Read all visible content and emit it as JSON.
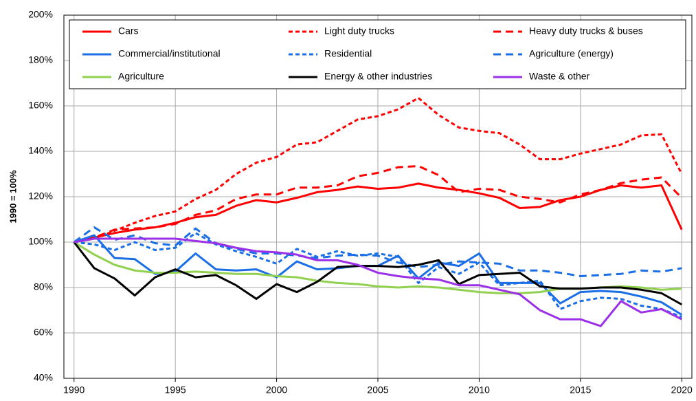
{
  "chart_data": {
    "type": "line",
    "y_label": "1990 = 100%",
    "x": [
      1990,
      1991,
      1992,
      1993,
      1994,
      1995,
      1996,
      1997,
      1998,
      1999,
      2000,
      2001,
      2002,
      2003,
      2004,
      2005,
      2006,
      2007,
      2008,
      2009,
      2010,
      2011,
      2012,
      2013,
      2014,
      2015,
      2016,
      2017,
      2018,
      2019,
      2020
    ],
    "xlim": [
      1989.5,
      2020.5
    ],
    "xticks": [
      1990,
      1995,
      2000,
      2005,
      2010,
      2015,
      2020
    ],
    "ylim": [
      40,
      200
    ],
    "yticks": [
      {
        "value": 40,
        "label": "40%"
      },
      {
        "value": 60,
        "label": "60%"
      },
      {
        "value": 80,
        "label": "80%"
      },
      {
        "value": 100,
        "label": "100%"
      },
      {
        "value": 120,
        "label": "120%"
      },
      {
        "value": 140,
        "label": "140%"
      },
      {
        "value": 160,
        "label": "160%"
      },
      {
        "value": 180,
        "label": "180%"
      },
      {
        "value": 200,
        "label": "200%"
      }
    ],
    "grid": true,
    "legend": "top",
    "series": [
      {
        "name": "Cars",
        "color": "#ff0000",
        "dash": "solid",
        "values": [
          100,
          102,
          104,
          105.5,
          106.5,
          108.5,
          111,
          112,
          116,
          118.5,
          117.5,
          119.5,
          122,
          123,
          124.5,
          123.5,
          124,
          125.8,
          124,
          123,
          121.5,
          119.5,
          115,
          115.5,
          118.5,
          120,
          123,
          125,
          124,
          125,
          105.5
        ]
      },
      {
        "name": "Light duty trucks",
        "color": "#ff0000",
        "dash": "dotted",
        "values": [
          100,
          101.5,
          105,
          108.5,
          111.5,
          113.5,
          119,
          123,
          130,
          135,
          137.5,
          143,
          144,
          149,
          154,
          155.5,
          158.5,
          163.5,
          156,
          150.5,
          149,
          148,
          143,
          136.5,
          136.5,
          139,
          141,
          143,
          147,
          147.5,
          130
        ]
      },
      {
        "name": "Heavy duty trucks & buses",
        "color": "#ff0000",
        "dash": "dashed",
        "values": [
          100,
          102,
          105.5,
          106,
          106.5,
          108,
          112,
          114,
          119,
          121,
          121,
          124,
          124,
          125,
          129,
          130.5,
          133,
          133.5,
          129.5,
          122,
          123.5,
          123,
          120,
          119,
          117.5,
          121,
          123,
          126,
          127.5,
          128.5,
          119.5
        ]
      },
      {
        "name": "Commercial/institutional",
        "color": "#1a6ee6",
        "dash": "solid",
        "values": [
          100,
          103,
          93,
          92.5,
          86,
          87,
          95,
          88,
          87.5,
          88,
          84.5,
          91.5,
          88,
          88.5,
          89.5,
          89.5,
          94,
          84,
          91,
          89.5,
          95,
          82,
          82,
          82,
          73,
          78,
          78.5,
          78,
          76,
          73.5,
          68
        ]
      },
      {
        "name": "Residential",
        "color": "#1a6ee6",
        "dash": "dotted",
        "values": [
          100,
          99,
          96.5,
          100,
          96.5,
          97.5,
          104,
          99,
          96,
          93.5,
          90.5,
          97,
          93.5,
          96,
          94,
          95,
          93.5,
          82,
          89,
          86,
          91,
          81,
          82,
          83,
          70.5,
          74,
          75.5,
          75,
          72,
          70.5,
          67
        ]
      },
      {
        "name": "Agriculture (energy)",
        "color": "#1a6ee6",
        "dash": "dashed",
        "values": [
          100,
          106.5,
          101,
          103,
          99.5,
          98.5,
          106,
          99.5,
          97,
          95,
          95,
          94,
          93,
          94,
          94.5,
          94,
          91,
          89,
          90,
          91.5,
          91,
          90.5,
          87.5,
          87.5,
          86.5,
          85,
          85.5,
          86,
          87.5,
          87,
          88.5
        ]
      },
      {
        "name": "Agriculture",
        "color": "#92d050",
        "dash": "solid",
        "values": [
          100,
          94.5,
          90,
          87.5,
          86.5,
          86.5,
          87,
          86.5,
          86,
          86,
          85,
          84.5,
          83,
          82,
          81.5,
          80.5,
          80,
          80.5,
          80,
          79,
          78,
          77.5,
          77.5,
          78,
          79.5,
          79.5,
          80,
          80.5,
          80,
          79,
          79.5
        ]
      },
      {
        "name": "Energy & other industries",
        "color": "#000000",
        "dash": "solid",
        "values": [
          100,
          88.5,
          84,
          76.5,
          84.5,
          88,
          84.5,
          85.5,
          81,
          75,
          81.5,
          78,
          82.5,
          89,
          89.5,
          89.5,
          89,
          90,
          92,
          81.5,
          85.5,
          86,
          86.5,
          80.5,
          79.5,
          79.5,
          80,
          80,
          79,
          77.5,
          72.5
        ]
      },
      {
        "name": "Waste & other",
        "color": "#9b30e8",
        "dash": "solid",
        "values": [
          100,
          101.5,
          101.5,
          101.5,
          101.5,
          101.5,
          100.5,
          99.5,
          97.5,
          96,
          95.5,
          94.5,
          92,
          92,
          90,
          86.5,
          85,
          84,
          83.5,
          81,
          81,
          79,
          77,
          70,
          66,
          66,
          63,
          74,
          69,
          70.5,
          66
        ]
      }
    ]
  }
}
